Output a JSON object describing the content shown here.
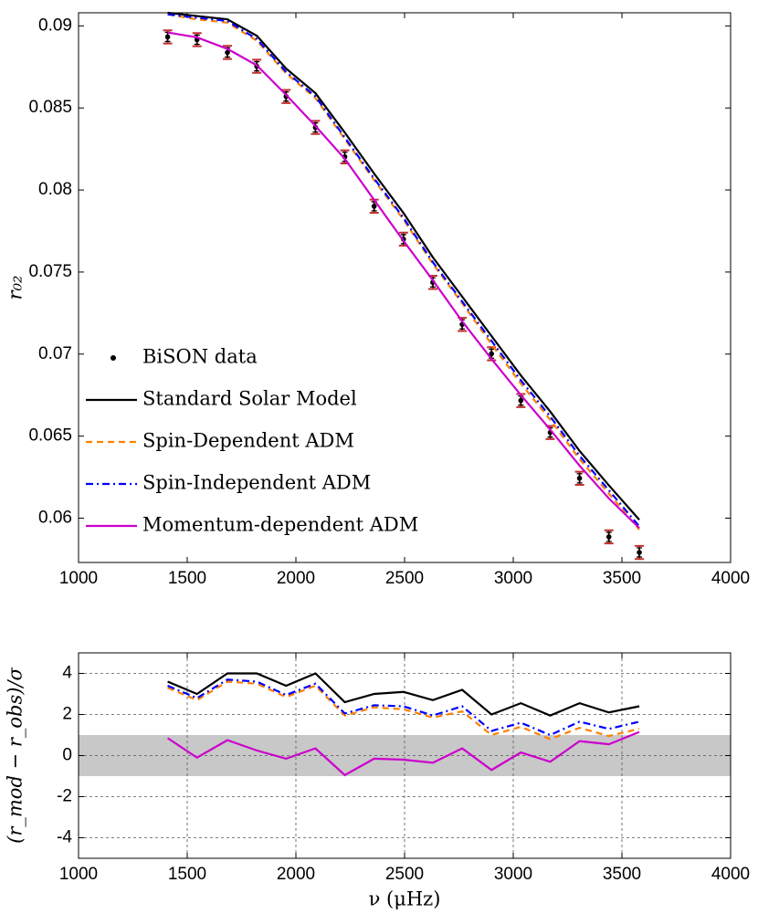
{
  "chart_data": [
    {
      "type": "line",
      "ylabel": "r₀₂",
      "x": [
        1410,
        1545,
        1685,
        1820,
        1955,
        2090,
        2225,
        2360,
        2495,
        2630,
        2765,
        2900,
        3035,
        3170,
        3305,
        3440,
        3580
      ],
      "xlim": [
        1000,
        4000
      ],
      "xticks": [
        1000,
        1500,
        2000,
        2500,
        3000,
        3500,
        4000
      ],
      "ylim": [
        0.0573,
        0.0908
      ],
      "yticks": [
        0.06,
        0.065,
        0.07,
        0.075,
        0.08,
        0.085,
        0.09
      ],
      "grid": false,
      "legend": "lower left",
      "series": [
        {
          "name": "BiSON data",
          "color": "#000000",
          "style": "markers",
          "error_color": "#c03030",
          "values": [
            0.08933,
            0.08916,
            0.08838,
            0.08754,
            0.0857,
            0.08381,
            0.08202,
            0.07901,
            0.077,
            0.07437,
            0.07181,
            0.07002,
            0.06717,
            0.06522,
            0.06243,
            0.05886,
            0.05791
          ],
          "errors": [
            0.0004,
            0.0004,
            0.0004,
            0.0004,
            0.0004,
            0.0004,
            0.0004,
            0.0004,
            0.0004,
            0.0004,
            0.0004,
            0.0004,
            0.0004,
            0.0004,
            0.0004,
            0.0004,
            0.0004
          ]
        },
        {
          "name": "Standard Solar Model",
          "color": "#000000",
          "style": "solid",
          "values": [
            0.0908,
            0.0906,
            0.0904,
            0.0894,
            0.0874,
            0.0859,
            0.0835,
            0.081,
            0.0786,
            0.0759,
            0.0735,
            0.0711,
            0.0687,
            0.0665,
            0.0641,
            0.062,
            0.0599
          ]
        },
        {
          "name": "Spin-Dependent ADM",
          "color": "#ff8000",
          "style": "dashed",
          "values": [
            0.0907,
            0.0904,
            0.0902,
            0.0891,
            0.0871,
            0.0856,
            0.0831,
            0.0806,
            0.0782,
            0.0755,
            0.0731,
            0.0706,
            0.0682,
            0.066,
            0.0636,
            0.0615,
            0.0593
          ]
        },
        {
          "name": "Spin-Independent ADM",
          "color": "#0000ff",
          "style": "dashdot",
          "values": [
            0.0907,
            0.0905,
            0.0903,
            0.0892,
            0.0872,
            0.0857,
            0.0832,
            0.0807,
            0.0783,
            0.0756,
            0.0732,
            0.0708,
            0.0684,
            0.0662,
            0.0638,
            0.0617,
            0.0595
          ]
        },
        {
          "name": "Momentum-dependent ADM",
          "color": "#cc00cc",
          "style": "solid",
          "values": [
            0.0896,
            0.0893,
            0.0886,
            0.0876,
            0.0858,
            0.0839,
            0.0819,
            0.0794,
            0.0769,
            0.0745,
            0.072,
            0.0697,
            0.0675,
            0.0654,
            0.0632,
            0.0612,
            0.0594
          ]
        }
      ]
    },
    {
      "type": "line",
      "xlabel": "ν (μHz)",
      "ylabel": "(r_mod − r_obs)/σ",
      "x": [
        1410,
        1545,
        1685,
        1820,
        1955,
        2090,
        2225,
        2360,
        2495,
        2630,
        2765,
        2900,
        3035,
        3170,
        3305,
        3440,
        3580
      ],
      "xlim": [
        1000,
        4000
      ],
      "xticks": [
        1000,
        1500,
        2000,
        2500,
        3000,
        3500,
        4000
      ],
      "ylim": [
        -5,
        5
      ],
      "yticks": [
        -4,
        -2,
        0,
        2,
        4
      ],
      "grid": true,
      "band": [
        -1,
        1
      ],
      "band_color": "#c8c8c8",
      "series": [
        {
          "color": "#000000",
          "style": "solid",
          "values": [
            3.6,
            3.0,
            4.0,
            4.0,
            3.4,
            4.0,
            2.6,
            3.0,
            3.1,
            2.7,
            3.2,
            2.0,
            2.55,
            1.95,
            2.55,
            2.1,
            2.4
          ]
        },
        {
          "color": "#ff8000",
          "style": "dashed",
          "values": [
            3.3,
            2.7,
            3.6,
            3.5,
            2.85,
            3.4,
            1.95,
            2.35,
            2.25,
            1.85,
            2.15,
            1.0,
            1.4,
            0.8,
            1.35,
            0.95,
            1.3
          ]
        },
        {
          "color": "#0000ff",
          "style": "dashdot",
          "values": [
            3.4,
            2.8,
            3.7,
            3.6,
            2.95,
            3.5,
            2.05,
            2.45,
            2.4,
            1.95,
            2.4,
            1.2,
            1.6,
            1.0,
            1.65,
            1.3,
            1.65
          ]
        },
        {
          "color": "#cc00cc",
          "style": "solid",
          "values": [
            0.85,
            -0.1,
            0.75,
            0.25,
            -0.15,
            0.35,
            -0.95,
            -0.15,
            -0.2,
            -0.35,
            0.35,
            -0.7,
            0.15,
            -0.3,
            0.7,
            0.55,
            1.15
          ]
        }
      ]
    }
  ]
}
